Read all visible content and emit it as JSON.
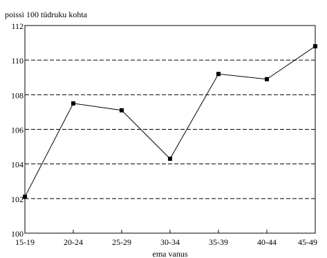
{
  "chart_data": {
    "type": "line",
    "title": "",
    "ylabel": "poissi 100 tüdruku kohta",
    "xlabel": "ema vanus",
    "categories": [
      "15-19",
      "20-24",
      "25-29",
      "30-34",
      "35-39",
      "40-44",
      "45-49"
    ],
    "series": [
      {
        "values": [
          102.1,
          107.5,
          107.1,
          104.3,
          109.2,
          108.9,
          110.8
        ]
      }
    ],
    "ylim": [
      100,
      112
    ],
    "yticks": [
      "100",
      "102",
      "104",
      "106",
      "108",
      "110",
      "112"
    ],
    "grid": "horizontal dashed",
    "legend": "none",
    "line_color": "#000000",
    "marker": "square"
  }
}
